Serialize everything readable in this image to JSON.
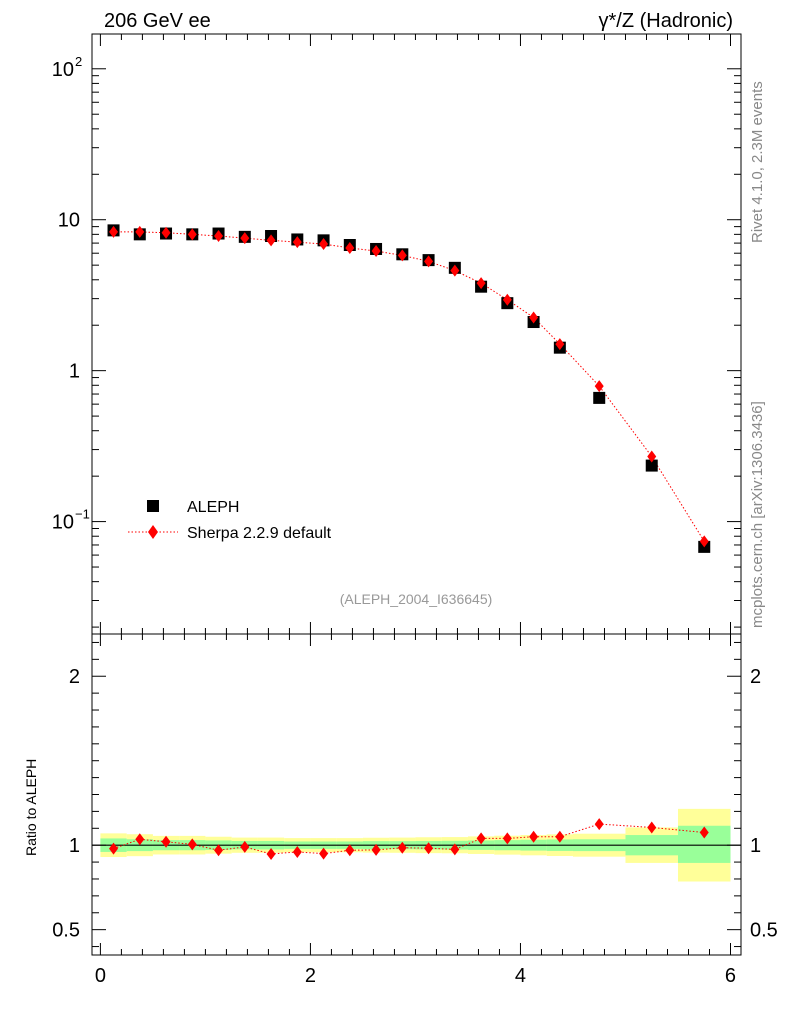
{
  "header": {
    "left": "206 GeV ee",
    "right": "γ*/Z (Hadronic)"
  },
  "side_labels": {
    "rivet": "Rivet 4.1.0,  2.3M events",
    "mcplots": "mcplots.cern.ch [arXiv:1306.3436]"
  },
  "watermark": "(ALEPH_2004_I636645)",
  "legend": {
    "data_label": "ALEPH",
    "mc_label": "Sherpa 2.2.9 default"
  },
  "chart_data": [
    {
      "type": "scatter",
      "title": "γ*/Z (Hadronic)",
      "yscale": "log",
      "xlim": [
        -0.08,
        6.1
      ],
      "ylim": [
        0.018,
        170
      ],
      "yticks": [
        {
          "value": 100,
          "base": "10",
          "exp": "2"
        },
        {
          "value": 10,
          "base": "10",
          "exp": ""
        },
        {
          "value": 1,
          "base": "1",
          "exp": ""
        },
        {
          "value": 0.1,
          "base": "10",
          "exp": "−1"
        }
      ],
      "legend_position": "bottom-left",
      "x": [
        0.125,
        0.375,
        0.625,
        0.875,
        1.125,
        1.375,
        1.625,
        1.875,
        2.125,
        2.375,
        2.625,
        2.875,
        3.125,
        3.375,
        3.625,
        3.875,
        4.125,
        4.375,
        4.75,
        5.25,
        5.75
      ],
      "series": [
        {
          "name": "ALEPH",
          "color": "#000000",
          "marker": "square",
          "values": [
            8.5,
            8.0,
            8.1,
            8.0,
            8.1,
            7.7,
            7.8,
            7.4,
            7.3,
            6.8,
            6.4,
            5.9,
            5.4,
            4.8,
            3.6,
            2.8,
            2.1,
            1.42,
            0.66,
            0.235,
            0.068
          ]
        },
        {
          "name": "Sherpa 2.2.9 default",
          "color": "#ff0000",
          "marker": "diamond",
          "line": "dotted",
          "values": [
            8.3,
            8.3,
            8.2,
            8.0,
            7.8,
            7.55,
            7.3,
            7.1,
            6.9,
            6.5,
            6.2,
            5.8,
            5.3,
            4.6,
            3.8,
            2.95,
            2.25,
            1.5,
            0.79,
            0.27,
            0.074
          ]
        }
      ]
    },
    {
      "type": "scatter",
      "ylabel": "Ratio to ALEPH",
      "xlim": [
        -0.08,
        6.1
      ],
      "ylim": [
        0.35,
        2.25
      ],
      "xticks": [
        "0",
        "2",
        "4",
        "6"
      ],
      "yticks": [
        "0.5",
        "1",
        "2"
      ],
      "reference": 1,
      "bins": [
        {
          "lo": 0.0,
          "hi": 0.25,
          "green": [
            0.96,
            1.04
          ],
          "yellow": [
            0.93,
            1.07
          ]
        },
        {
          "lo": 0.25,
          "hi": 0.5,
          "green": [
            0.965,
            1.035
          ],
          "yellow": [
            0.935,
            1.065
          ]
        },
        {
          "lo": 0.5,
          "hi": 0.75,
          "green": [
            0.97,
            1.03
          ],
          "yellow": [
            0.945,
            1.055
          ]
        },
        {
          "lo": 0.75,
          "hi": 1.0,
          "green": [
            0.97,
            1.03
          ],
          "yellow": [
            0.945,
            1.055
          ]
        },
        {
          "lo": 1.0,
          "hi": 1.25,
          "green": [
            0.972,
            1.028
          ],
          "yellow": [
            0.95,
            1.05
          ]
        },
        {
          "lo": 1.25,
          "hi": 1.5,
          "green": [
            0.975,
            1.025
          ],
          "yellow": [
            0.955,
            1.045
          ]
        },
        {
          "lo": 1.5,
          "hi": 1.75,
          "green": [
            0.975,
            1.025
          ],
          "yellow": [
            0.955,
            1.045
          ]
        },
        {
          "lo": 1.75,
          "hi": 2.0,
          "green": [
            0.978,
            1.022
          ],
          "yellow": [
            0.958,
            1.042
          ]
        },
        {
          "lo": 2.0,
          "hi": 2.25,
          "green": [
            0.978,
            1.022
          ],
          "yellow": [
            0.958,
            1.042
          ]
        },
        {
          "lo": 2.25,
          "hi": 2.5,
          "green": [
            0.978,
            1.022
          ],
          "yellow": [
            0.958,
            1.042
          ]
        },
        {
          "lo": 2.5,
          "hi": 2.75,
          "green": [
            0.976,
            1.024
          ],
          "yellow": [
            0.956,
            1.044
          ]
        },
        {
          "lo": 2.75,
          "hi": 3.0,
          "green": [
            0.976,
            1.024
          ],
          "yellow": [
            0.955,
            1.045
          ]
        },
        {
          "lo": 3.0,
          "hi": 3.25,
          "green": [
            0.975,
            1.025
          ],
          "yellow": [
            0.953,
            1.047
          ]
        },
        {
          "lo": 3.25,
          "hi": 3.5,
          "green": [
            0.974,
            1.026
          ],
          "yellow": [
            0.952,
            1.048
          ]
        },
        {
          "lo": 3.5,
          "hi": 3.75,
          "green": [
            0.972,
            1.028
          ],
          "yellow": [
            0.948,
            1.052
          ]
        },
        {
          "lo": 3.75,
          "hi": 4.0,
          "green": [
            0.97,
            1.03
          ],
          "yellow": [
            0.944,
            1.056
          ]
        },
        {
          "lo": 4.0,
          "hi": 4.25,
          "green": [
            0.968,
            1.032
          ],
          "yellow": [
            0.94,
            1.06
          ]
        },
        {
          "lo": 4.25,
          "hi": 4.5,
          "green": [
            0.966,
            1.034
          ],
          "yellow": [
            0.936,
            1.064
          ]
        },
        {
          "lo": 4.5,
          "hi": 5.0,
          "green": [
            0.965,
            1.035
          ],
          "yellow": [
            0.932,
            1.068
          ]
        },
        {
          "lo": 5.0,
          "hi": 5.5,
          "green": [
            0.94,
            1.06
          ],
          "yellow": [
            0.895,
            1.105
          ]
        },
        {
          "lo": 5.5,
          "hi": 6.0,
          "green": [
            0.895,
            1.115
          ],
          "yellow": [
            0.785,
            1.215
          ]
        }
      ],
      "x": [
        0.125,
        0.375,
        0.625,
        0.875,
        1.125,
        1.375,
        1.625,
        1.875,
        2.125,
        2.375,
        2.625,
        2.875,
        3.125,
        3.375,
        3.625,
        3.875,
        4.125,
        4.375,
        4.75,
        5.25,
        5.75
      ],
      "series": [
        {
          "name": "Sherpa 2.2.9 default / ALEPH",
          "color": "#ff0000",
          "marker": "diamond",
          "line": "dotted",
          "values": [
            0.98,
            1.035,
            1.02,
            1.005,
            0.97,
            0.99,
            0.948,
            0.96,
            0.95,
            0.97,
            0.972,
            0.985,
            0.982,
            0.975,
            1.04,
            1.04,
            1.05,
            1.05,
            1.125,
            1.105,
            1.075
          ]
        }
      ]
    }
  ]
}
